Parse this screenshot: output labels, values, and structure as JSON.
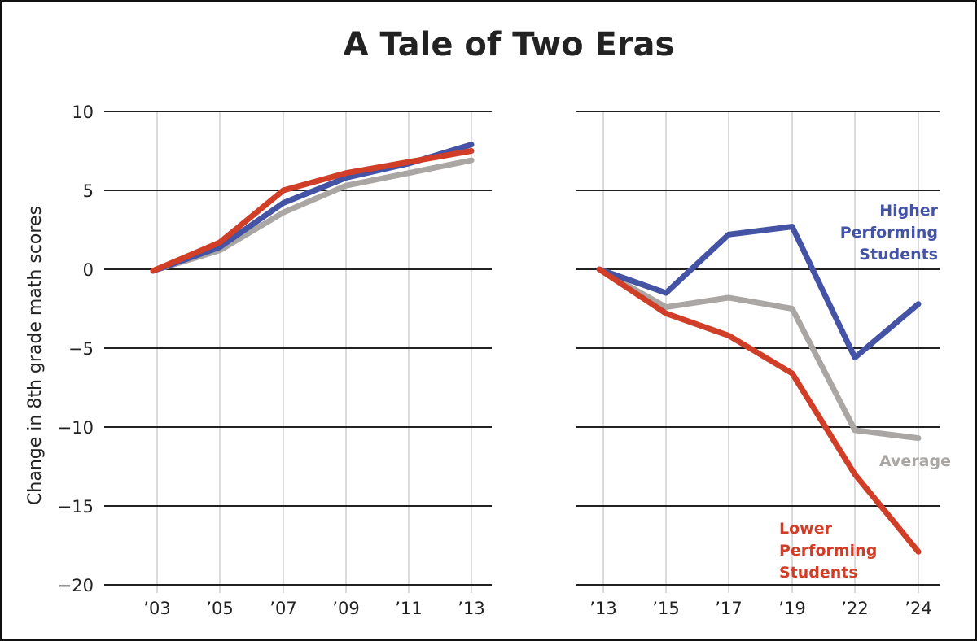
{
  "chart_data": [
    {
      "type": "line",
      "title": "A Tale of Two Eras",
      "ylabel": "Change in 8th grade math scores",
      "ylim": [
        -20,
        10
      ],
      "yticks": [
        10,
        5,
        0,
        -5,
        -10,
        -15,
        -20
      ],
      "ytick_labels": [
        "10",
        "5",
        "0",
        "−5",
        "−10",
        "−15",
        "−20"
      ],
      "grid": true,
      "categories": [
        "’03",
        "’05",
        "’07",
        "’09",
        "’11",
        "’13"
      ],
      "series": [
        {
          "key": "average",
          "color": "#aaa6a4",
          "values": [
            -0.1,
            1.2,
            3.6,
            5.3,
            6.1,
            6.9
          ]
        },
        {
          "key": "higher",
          "color": "#4553a5",
          "values": [
            -0.1,
            1.4,
            4.2,
            5.8,
            6.7,
            7.9
          ]
        },
        {
          "key": "lower",
          "color": "#d03e27",
          "values": [
            -0.1,
            1.7,
            5.0,
            6.1,
            6.8,
            7.5
          ]
        }
      ]
    },
    {
      "type": "line",
      "ylim": [
        -20,
        10
      ],
      "grid": true,
      "categories": [
        "’13",
        "’15",
        "’17",
        "’19",
        "’22",
        "’24"
      ],
      "series": [
        {
          "key": "average",
          "name": "Average",
          "color": "#aaa6a4",
          "values": [
            0,
            -2.4,
            -1.8,
            -2.5,
            -10.2,
            -10.7
          ]
        },
        {
          "key": "higher",
          "name": "Higher Performing Students",
          "name_lines": [
            "Higher",
            "Performing",
            "Students"
          ],
          "color": "#4553a5",
          "values": [
            0,
            -1.5,
            2.2,
            2.7,
            -5.6,
            -2.2
          ]
        },
        {
          "key": "lower",
          "name": "Lower Performing Students",
          "name_lines": [
            "Lower",
            "Performing",
            "Students"
          ],
          "color": "#d03e27",
          "values": [
            0,
            -2.8,
            -4.2,
            -6.6,
            -13.0,
            -17.9
          ]
        }
      ]
    }
  ]
}
